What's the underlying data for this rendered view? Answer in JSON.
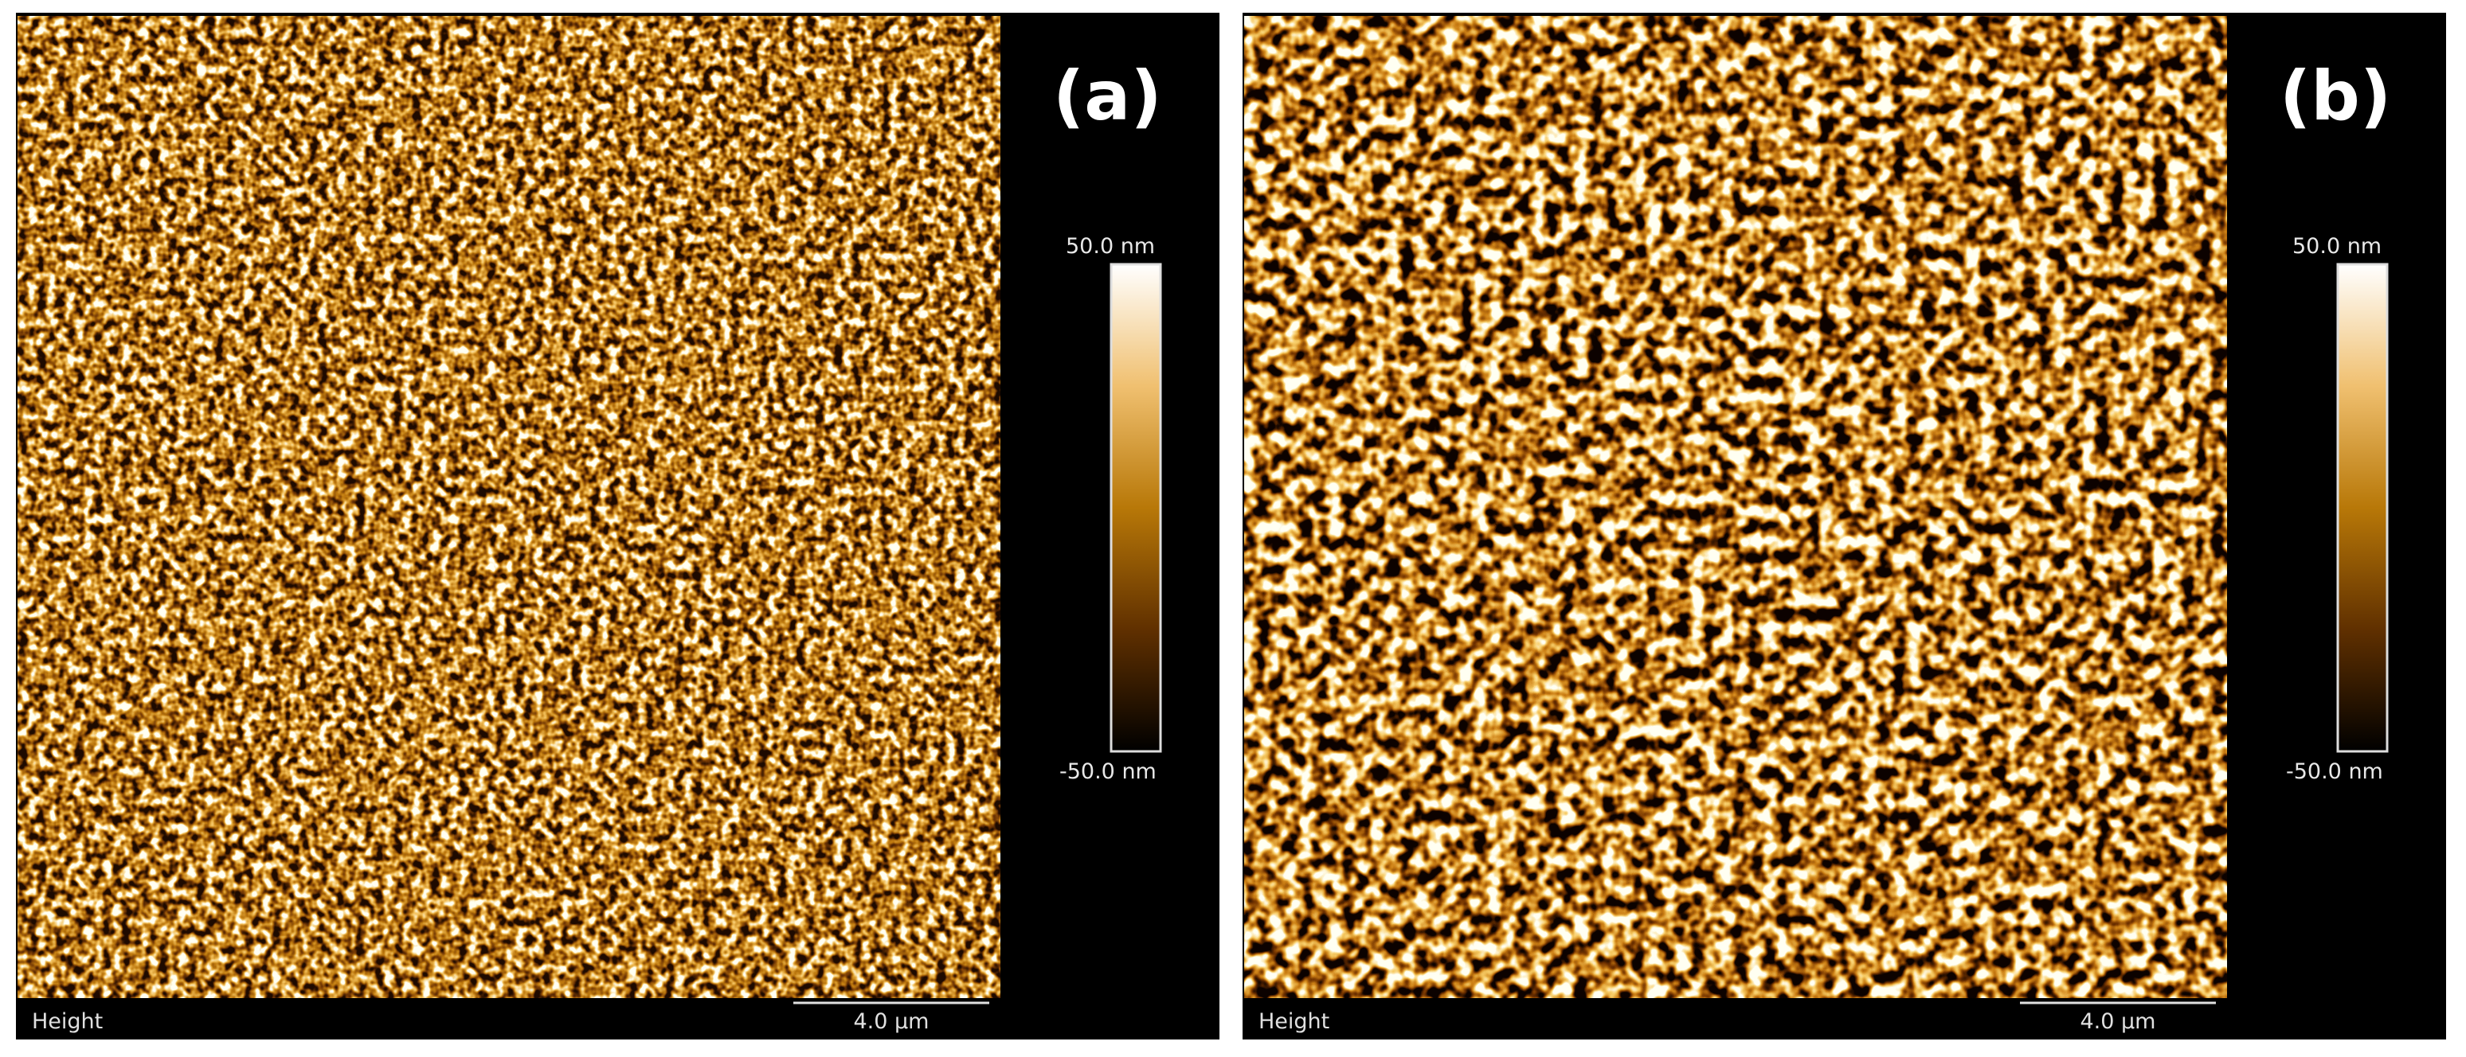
{
  "panels": [
    {
      "label": "(a)",
      "colorbar": {
        "max": "50.0 nm",
        "min": "-50.0 nm"
      },
      "channel": "Height",
      "scale_bar": "4.0 µm"
    },
    {
      "label": "(b)",
      "colorbar": {
        "max": "50.0 nm",
        "min": "-50.0 nm"
      },
      "channel": "Height",
      "scale_bar": "4.0 µm"
    }
  ]
}
